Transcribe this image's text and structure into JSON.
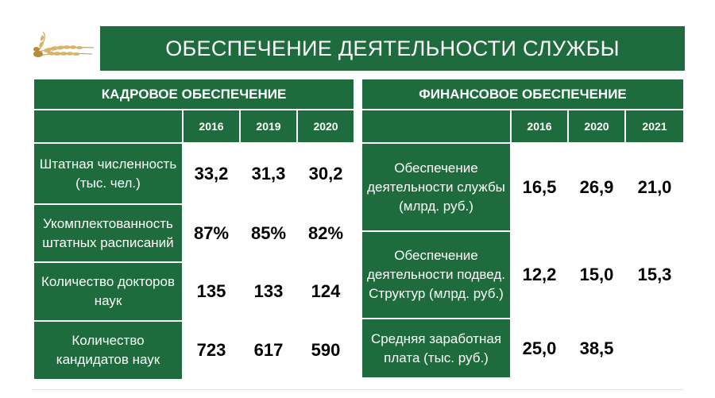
{
  "title": "ОБЕСПЕЧЕНИЕ ДЕЯТЕЛЬНОСТИ СЛУЖБЫ",
  "colors": {
    "green": "#1e6b3d",
    "text": "#ffffff",
    "values": "#000000"
  },
  "staff": {
    "heading": "КАДРОВОЕ ОБЕСПЕЧЕНИЕ",
    "years": [
      "2016",
      "2019",
      "2020"
    ],
    "rows": [
      {
        "label": "Штатная численность (тыс. чел.)",
        "values": [
          "33,2",
          "31,3",
          "30,2"
        ]
      },
      {
        "label": "Укомплектованность штатных расписаний",
        "values": [
          "87%",
          "85%",
          "82%"
        ]
      },
      {
        "label": "Количество докторов наук",
        "values": [
          "135",
          "133",
          "124"
        ]
      },
      {
        "label": "Количество кандидатов наук",
        "values": [
          "723",
          "617",
          "590"
        ]
      }
    ]
  },
  "finance": {
    "heading": "ФИНАНСОВОЕ ОБЕСПЕЧЕНИЕ",
    "years": [
      "2016",
      "2020",
      "2021"
    ],
    "rows": [
      {
        "label": "Обеспечение деятельности службы (млрд. руб.)",
        "values": [
          "16,5",
          "26,9",
          "21,0"
        ]
      },
      {
        "label": "Обеспечение деятельности подвед. Структур (млрд. руб.)",
        "values": [
          "12,2",
          "15,0",
          "15,3"
        ]
      },
      {
        "label": "Средняя заработная плата (тыс. руб.)",
        "values": [
          "25,0",
          "38,5",
          ""
        ]
      }
    ]
  }
}
